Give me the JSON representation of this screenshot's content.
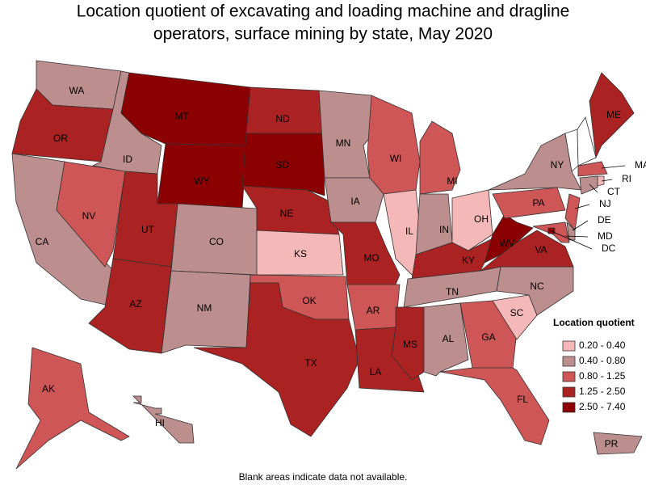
{
  "title": [
    "Location quotient of excavating and loading machine and dragline",
    "operators, surface mining by state, May 2020"
  ],
  "states": [
    {
      "label": "WA",
      "color": "#bc8e8e"
    },
    {
      "label": "OR",
      "color": "#ab2222"
    },
    {
      "label": "CA",
      "color": "#bc8e8e"
    },
    {
      "label": "NV",
      "color": "#cf5656"
    },
    {
      "label": "ID",
      "color": "#bc8e8e"
    },
    {
      "label": "MT",
      "color": "#8b0000"
    },
    {
      "label": "WY",
      "color": "#8b0000"
    },
    {
      "label": "UT",
      "color": "#ab2222"
    },
    {
      "label": "AZ",
      "color": "#ab2222"
    },
    {
      "label": "CO",
      "color": "#bc8e8e"
    },
    {
      "label": "NM",
      "color": "#bc8e8e"
    },
    {
      "label": "ND",
      "color": "#ab2222"
    },
    {
      "label": "SD",
      "color": "#8b0000"
    },
    {
      "label": "NE",
      "color": "#ab2222"
    },
    {
      "label": "KS",
      "color": "#f5b8b8"
    },
    {
      "label": "OK",
      "color": "#cf5656"
    },
    {
      "label": "TX",
      "color": "#ab2222"
    },
    {
      "label": "MN",
      "color": "#bc8e8e"
    },
    {
      "label": "IA",
      "color": "#bc8e8e"
    },
    {
      "label": "MO",
      "color": "#ab2222"
    },
    {
      "label": "AR",
      "color": "#cf5656"
    },
    {
      "label": "LA",
      "color": "#ab2222"
    },
    {
      "label": "WI",
      "color": "#cf5656"
    },
    {
      "label": "IL",
      "color": "#f5b8b8"
    },
    {
      "label": "MI",
      "color": "#cf5656"
    },
    {
      "label": "IN",
      "color": "#bc8e8e"
    },
    {
      "label": "OH",
      "color": "#f5b8b8"
    },
    {
      "label": "KY",
      "color": "#ab2222"
    },
    {
      "label": "TN",
      "color": "#bc8e8e"
    },
    {
      "label": "MS",
      "color": "#ab2222"
    },
    {
      "label": "AL",
      "color": "#bc8e8e"
    },
    {
      "label": "GA",
      "color": "#cf5656"
    },
    {
      "label": "FL",
      "color": "#cf5656"
    },
    {
      "label": "SC",
      "color": "#f5b8b8"
    },
    {
      "label": "NC",
      "color": "#bc8e8e"
    },
    {
      "label": "VA",
      "color": "#ab2222"
    },
    {
      "label": "WV",
      "color": "#8b0000"
    },
    {
      "label": "PA",
      "color": "#cf5656"
    },
    {
      "label": "NY",
      "color": "#bc8e8e"
    },
    {
      "label": "ME",
      "color": "#ab2222"
    },
    {
      "label": "MA",
      "color": "#cf5656"
    },
    {
      "label": "RI",
      "color": "#f5b8b8"
    },
    {
      "label": "CT",
      "color": "#bc8e8e"
    },
    {
      "label": "NJ",
      "color": "#cf5656"
    },
    {
      "label": "DE",
      "color": "#bc8e8e"
    },
    {
      "label": "MD",
      "color": "#cf5656"
    },
    {
      "label": "DC",
      "color": "#8b0000"
    },
    {
      "label": "AK",
      "color": "#cf5656"
    },
    {
      "label": "HI",
      "color": "#bc8e8e"
    },
    {
      "label": "PR",
      "color": "#bc8e8e"
    }
  ],
  "legend": {
    "title": "Location quotient",
    "items": [
      {
        "label": "0.20 - 0.40",
        "color": "#f5b8b8"
      },
      {
        "label": "0.40 - 0.80",
        "color": "#bc8e8e"
      },
      {
        "label": "0.80 - 1.25",
        "color": "#cf5656"
      },
      {
        "label": "1.25 - 2.50",
        "color": "#ab2222"
      },
      {
        "label": "2.50 - 7.40",
        "color": "#8b0000"
      }
    ]
  },
  "note": "Blank areas indicate data not available."
}
